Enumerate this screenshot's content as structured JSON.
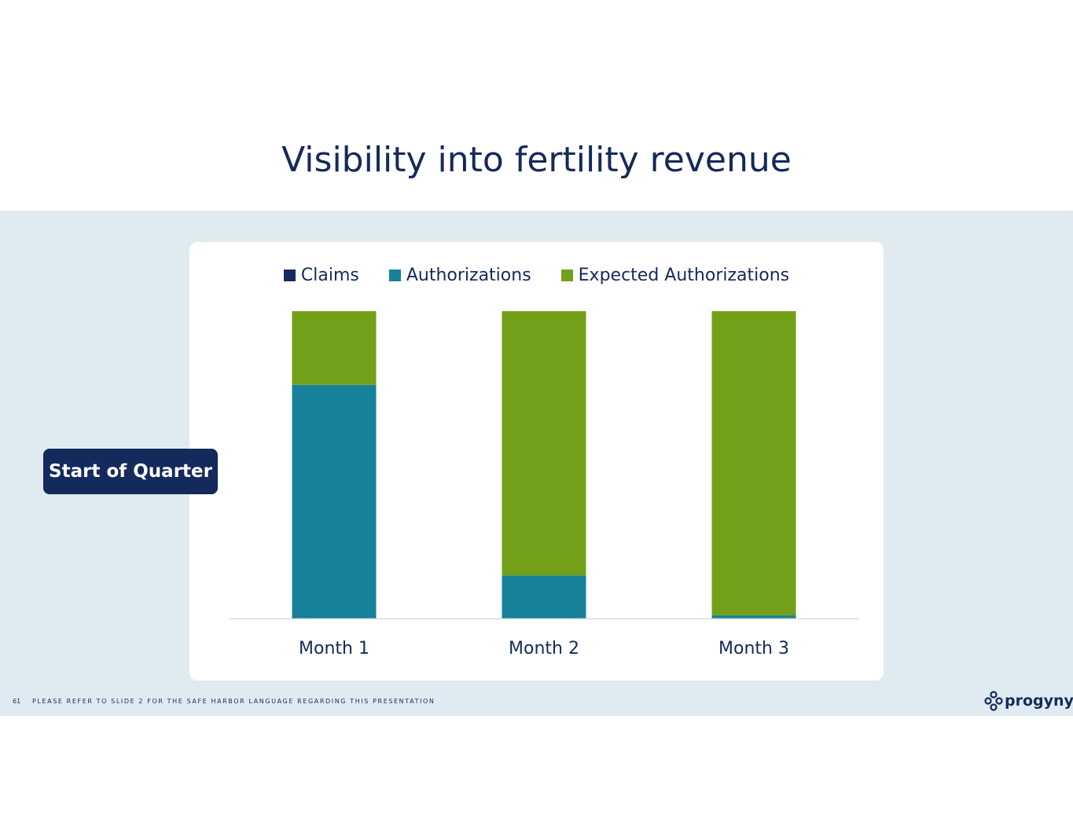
{
  "slide": {
    "title": "Visibility into fertility revenue",
    "badge": "Start of Quarter",
    "page_number": "61",
    "footer": "PLEASE REFER TO SLIDE 2 FOR THE SAFE HARBOR LANGUAGE REGARDING THIS PRESENTATION",
    "logo": "progyny"
  },
  "colors": {
    "claims": "#142a5c",
    "authorizations": "#168199",
    "expected": "#73a019",
    "band": "#dfebf1"
  },
  "chart_data": {
    "type": "bar",
    "stacked": true,
    "title": "",
    "xlabel": "",
    "ylabel": "",
    "categories": [
      "Month 1",
      "Month 2",
      "Month 3"
    ],
    "ylim": [
      0,
      100
    ],
    "grid": false,
    "legend_position": "top",
    "series": [
      {
        "name": "Claims",
        "values": [
          0,
          0,
          0
        ]
      },
      {
        "name": "Authorizations",
        "values": [
          76,
          14,
          1
        ]
      },
      {
        "name": "Expected Authorizations",
        "values": [
          24,
          86,
          99
        ]
      }
    ]
  }
}
